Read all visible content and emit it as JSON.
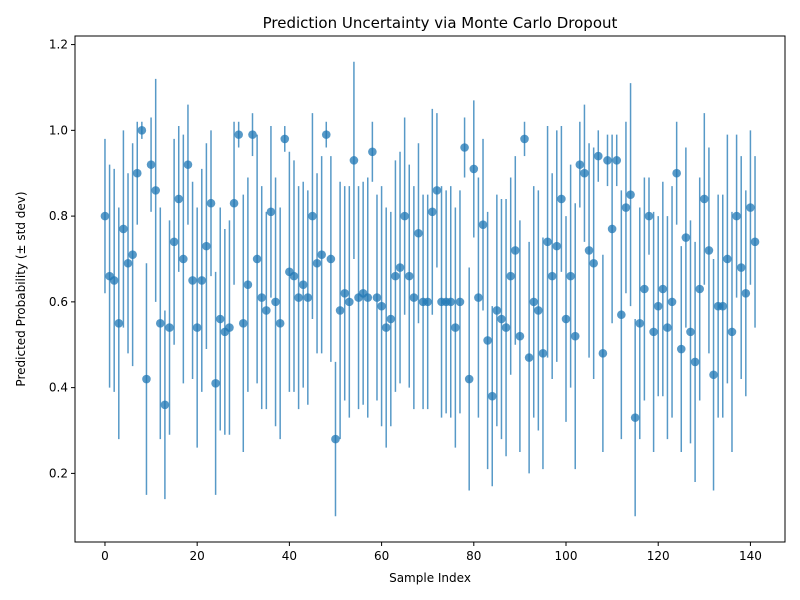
{
  "chart_data": {
    "type": "scatter",
    "title": "Prediction Uncertainty via Monte Carlo Dropout",
    "xlabel": "Sample Index",
    "ylabel": "Predicted Probability (± std dev)",
    "xlim": [
      -6.5,
      147.5
    ],
    "ylim": [
      0.04,
      1.22
    ],
    "xticks": [
      0,
      20,
      40,
      60,
      80,
      100,
      120,
      140
    ],
    "yticks": [
      0.2,
      0.4,
      0.6,
      0.8,
      1.0,
      1.2
    ],
    "grid": false,
    "marker_color": "#1f77b4",
    "means": [
      0.8,
      0.66,
      0.65,
      0.55,
      0.77,
      0.69,
      0.71,
      0.9,
      1.0,
      0.42,
      0.92,
      0.86,
      0.55,
      0.36,
      0.54,
      0.74,
      0.84,
      0.7,
      0.92,
      0.65,
      0.54,
      0.65,
      0.73,
      0.83,
      0.41,
      0.56,
      0.53,
      0.54,
      0.83,
      0.99,
      0.55,
      0.64,
      0.99,
      0.7,
      0.61,
      0.58,
      0.81,
      0.6,
      0.55,
      0.98,
      0.67,
      0.66,
      0.61,
      0.64,
      0.61,
      0.8,
      0.69,
      0.71,
      0.99,
      0.7,
      0.28,
      0.58,
      0.62,
      0.6,
      0.93,
      0.61,
      0.62,
      0.61,
      0.95,
      0.61,
      0.59,
      0.54,
      0.56,
      0.66,
      0.68,
      0.8,
      0.66,
      0.61,
      0.76,
      0.6,
      0.6,
      0.81,
      0.86,
      0.6,
      0.6,
      0.6,
      0.54,
      0.6,
      0.96,
      0.42,
      0.91,
      0.61,
      0.78,
      0.51,
      0.38,
      0.58,
      0.56,
      0.54,
      0.66,
      0.72,
      0.52,
      0.98,
      0.47,
      0.6,
      0.58,
      0.48,
      0.74,
      0.66,
      0.73,
      0.84,
      0.56,
      0.66,
      0.52,
      0.92,
      0.9,
      0.72,
      0.69,
      0.94,
      0.48,
      0.93,
      0.77,
      0.93,
      0.57,
      0.82,
      0.85,
      0.33,
      0.55,
      0.63,
      0.8,
      0.53,
      0.59,
      0.63,
      0.54,
      0.6,
      0.9,
      0.49,
      0.75,
      0.53,
      0.46,
      0.63,
      0.84,
      0.72,
      0.43,
      0.59,
      0.59,
      0.7,
      0.53,
      0.8,
      0.68,
      0.62,
      0.82,
      0.74
    ],
    "std": [
      0.18,
      0.26,
      0.26,
      0.27,
      0.23,
      0.21,
      0.26,
      0.12,
      0.02,
      0.27,
      0.11,
      0.26,
      0.27,
      0.22,
      0.25,
      0.24,
      0.17,
      0.29,
      0.14,
      0.23,
      0.28,
      0.26,
      0.24,
      0.17,
      0.26,
      0.26,
      0.24,
      0.25,
      0.19,
      0.03,
      0.3,
      0.25,
      0.05,
      0.29,
      0.26,
      0.23,
      0.2,
      0.29,
      0.27,
      0.03,
      0.28,
      0.27,
      0.26,
      0.24,
      0.25,
      0.24,
      0.21,
      0.23,
      0.03,
      0.24,
      0.18,
      0.3,
      0.25,
      0.27,
      0.23,
      0.26,
      0.26,
      0.28,
      0.07,
      0.24,
      0.28,
      0.28,
      0.25,
      0.27,
      0.27,
      0.23,
      0.26,
      0.26,
      0.21,
      0.25,
      0.25,
      0.24,
      0.18,
      0.27,
      0.26,
      0.27,
      0.28,
      0.26,
      0.07,
      0.26,
      0.16,
      0.28,
      0.2,
      0.3,
      0.21,
      0.27,
      0.28,
      0.3,
      0.23,
      0.22,
      0.27,
      0.04,
      0.27,
      0.27,
      0.28,
      0.27,
      0.27,
      0.24,
      0.27,
      0.17,
      0.24,
      0.26,
      0.31,
      0.1,
      0.16,
      0.25,
      0.27,
      0.06,
      0.23,
      0.06,
      0.22,
      0.06,
      0.29,
      0.2,
      0.26,
      0.23,
      0.27,
      0.26,
      0.09,
      0.28,
      0.21,
      0.25,
      0.26,
      0.27,
      0.12,
      0.24,
      0.21,
      0.26,
      0.28,
      0.26,
      0.2,
      0.24,
      0.27,
      0.26,
      0.26,
      0.29,
      0.28,
      0.19,
      0.26,
      0.24,
      0.18,
      0.2
    ]
  }
}
